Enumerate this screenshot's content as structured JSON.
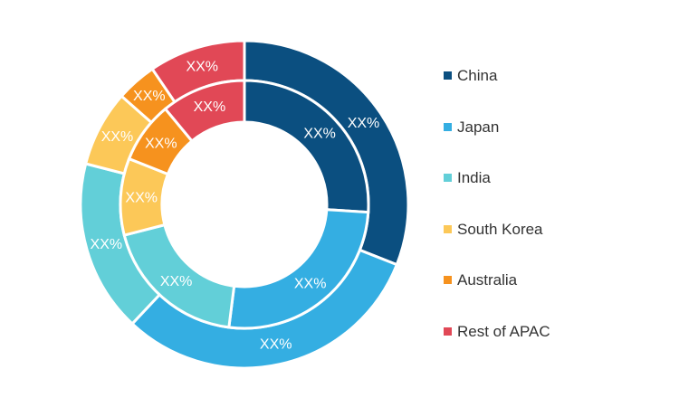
{
  "chart_data": {
    "type": "pie",
    "subtype": "nested-donut",
    "title": "",
    "categories": [
      "China",
      "Japan",
      "India",
      "South Korea",
      "Australia",
      "Rest of APAC"
    ],
    "colors": [
      "#0b4f80",
      "#34aee2",
      "#62cfd8",
      "#fcc858",
      "#f6921e",
      "#e14856"
    ],
    "series": [
      {
        "ring": "outer",
        "values": [
          31,
          31,
          17,
          7.5,
          4,
          9.5
        ],
        "labels": [
          "XX%",
          "XX%",
          "XX%",
          "XX%",
          "XX%",
          "XX%"
        ]
      },
      {
        "ring": "inner",
        "values": [
          26,
          26,
          19,
          10,
          8,
          11
        ],
        "labels": [
          "XX%",
          "XX%",
          "XX%",
          "XX%",
          "XX%",
          "XX%"
        ]
      }
    ],
    "legend_position": "right"
  }
}
